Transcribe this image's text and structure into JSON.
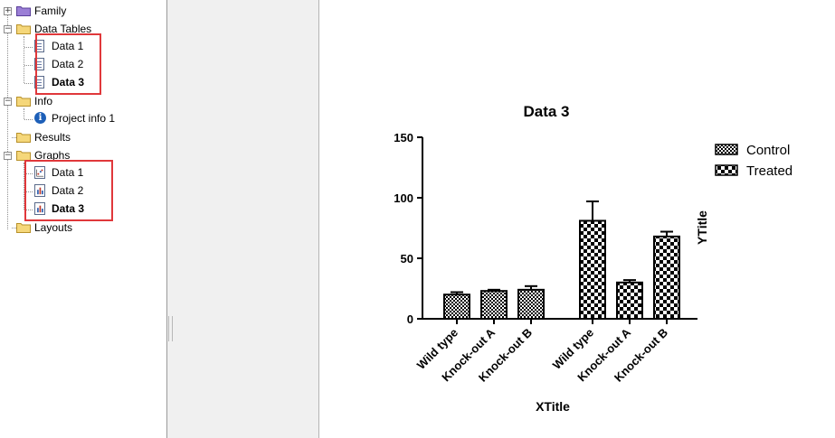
{
  "navigator": {
    "family": "Family",
    "data_tables": "Data Tables",
    "data_table_items": [
      "Data 1",
      "Data 2",
      "Data 3"
    ],
    "info": "Info",
    "project_info": "Project info 1",
    "results": "Results",
    "graphs": "Graphs",
    "graph_items": [
      "Data 1",
      "Data 2",
      "Data 3"
    ],
    "layouts": "Layouts",
    "selected": "Data 3",
    "highlight_color": "#e0383b"
  },
  "graph": {
    "chart_data": {
      "type": "bar",
      "title": "Data 3",
      "xlabel": "XTitle",
      "ylabel": "YTitle",
      "ylim": [
        0,
        150
      ],
      "yticks": [
        0,
        50,
        100,
        150
      ],
      "categories": [
        "Wild type",
        "Knock-out A",
        "Knock-out B"
      ],
      "series": [
        {
          "name": "Control",
          "pattern": "fine-checker",
          "values": [
            20,
            23,
            24
          ],
          "error": [
            2,
            1,
            3
          ]
        },
        {
          "name": "Treated",
          "pattern": "coarse-checker",
          "values": [
            81,
            30,
            68
          ],
          "error": [
            16,
            2,
            4
          ]
        }
      ],
      "legend_position": "top-right",
      "grid": false
    }
  }
}
